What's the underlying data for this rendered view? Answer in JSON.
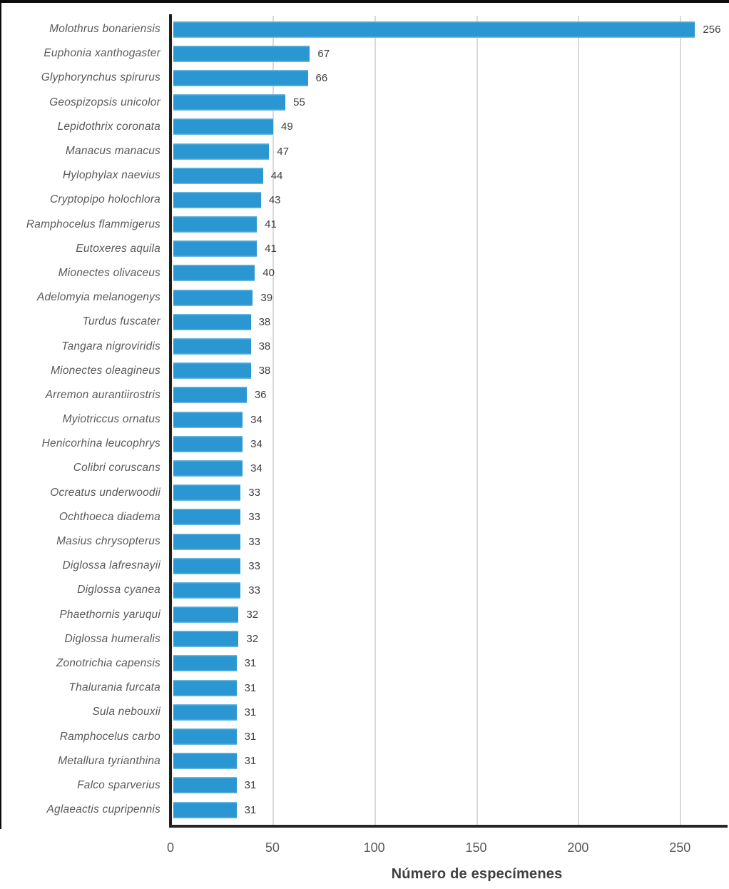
{
  "chart_data": {
    "type": "bar",
    "orientation": "horizontal",
    "title": "",
    "xlabel": "Número de especímenes",
    "ylabel": "",
    "x_ticks": [
      0,
      50,
      100,
      150,
      200,
      250
    ],
    "xlim": [
      0,
      274
    ],
    "grid": "vertical-gridlines-only",
    "legend": "none",
    "data_labels": true,
    "bar_color": "#2b97d2",
    "gridline_color": "#d9d9d9",
    "category_label_color": "#595959",
    "value_label_color": "#404040",
    "categories": [
      "Molothrus bonariensis",
      "Euphonia xanthogaster",
      "Glyphorynchus spirurus",
      "Geospizopsis unicolor",
      "Lepidothrix coronata",
      "Manacus manacus",
      "Hylophylax naevius",
      "Cryptopipo holochlora",
      "Ramphocelus flammigerus",
      "Eutoxeres aquila",
      "Mionectes olivaceus",
      "Adelomyia melanogenys",
      "Turdus fuscater",
      "Tangara nigroviridis",
      "Mionectes oleagineus",
      "Arremon aurantiirostris",
      "Myiotriccus ornatus",
      "Henicorhina leucophrys",
      "Colibri coruscans",
      "Ocreatus underwoodii",
      "Ochthoeca diadema",
      "Masius chrysopterus",
      "Diglossa lafresnayii",
      "Diglossa cyanea",
      "Phaethornis yaruqui",
      "Diglossa humeralis",
      "Zonotrichia capensis",
      "Thalurania furcata",
      "Sula nebouxii",
      "Ramphocelus carbo",
      "Metallura tyrianthina",
      "Falco sparverius",
      "Aglaeactis cupripennis"
    ],
    "values": [
      256,
      67,
      66,
      55,
      49,
      47,
      44,
      43,
      41,
      41,
      40,
      39,
      38,
      38,
      38,
      36,
      34,
      34,
      34,
      33,
      33,
      33,
      33,
      33,
      32,
      32,
      31,
      31,
      31,
      31,
      31,
      31,
      31
    ]
  }
}
